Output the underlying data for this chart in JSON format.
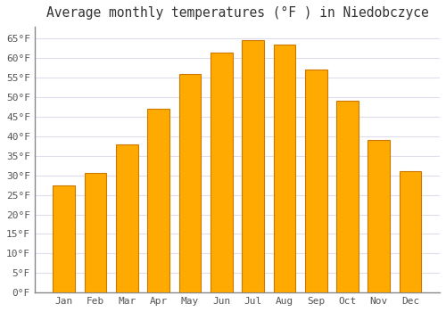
{
  "title": "Average monthly temperatures (°F ) in Niedobczyce",
  "months": [
    "Jan",
    "Feb",
    "Mar",
    "Apr",
    "May",
    "Jun",
    "Jul",
    "Aug",
    "Sep",
    "Oct",
    "Nov",
    "Dec"
  ],
  "values": [
    27.5,
    30.5,
    38.0,
    47.0,
    56.0,
    61.5,
    64.5,
    63.5,
    57.0,
    49.0,
    39.0,
    31.0
  ],
  "bar_color": "#FFAA00",
  "bar_edge_color": "#CC7700",
  "background_color": "#FFFFFF",
  "plot_bg_color": "#FFFFFF",
  "grid_color": "#DDDDEE",
  "text_color": "#555555",
  "title_color": "#333333",
  "ylim": [
    0,
    68
  ],
  "yticks": [
    0,
    5,
    10,
    15,
    20,
    25,
    30,
    35,
    40,
    45,
    50,
    55,
    60,
    65
  ],
  "title_fontsize": 10.5,
  "tick_fontsize": 8,
  "font_family": "monospace"
}
